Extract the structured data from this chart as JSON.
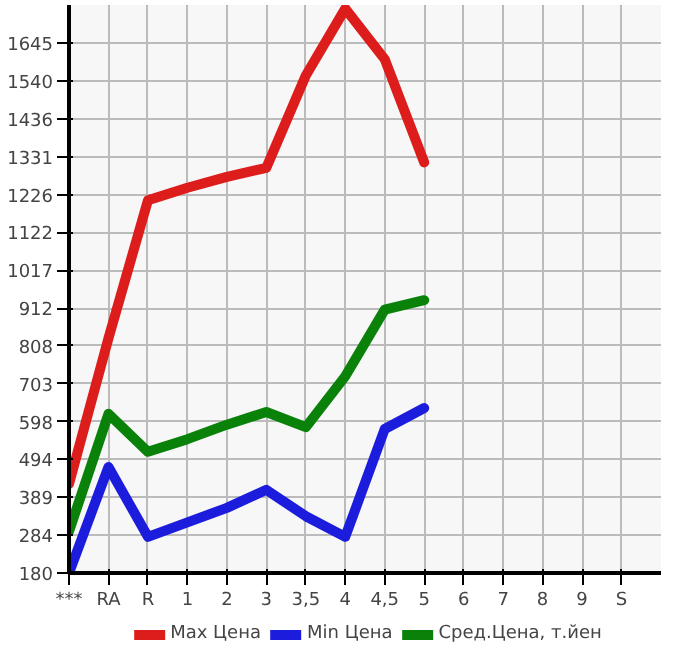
{
  "chart_data": {
    "type": "line",
    "categories": [
      "***",
      "RA",
      "R",
      "1",
      "2",
      "3",
      "3,5",
      "4",
      "4,5",
      "5",
      "6",
      "7",
      "8",
      "9",
      "S"
    ],
    "series": [
      {
        "name": "Max Цена",
        "color": "#dd1c1c",
        "values": [
          426,
          829,
          1210,
          1245,
          1275,
          1300,
          1555,
          1740,
          1600,
          1315,
          null,
          null,
          null,
          null,
          null
        ]
      },
      {
        "name": "Min Цена",
        "color": "#1c1cdd",
        "values": [
          180,
          473,
          280,
          320,
          360,
          410,
          337,
          280,
          578,
          636,
          null,
          null,
          null,
          null,
          null
        ]
      },
      {
        "name": "Сред.Цена, т.йен",
        "color": "#0a820a",
        "values": [
          295,
          620,
          515,
          550,
          590,
          625,
          583,
          724,
          908,
          934,
          null,
          null,
          null,
          null,
          null
        ]
      }
    ],
    "ylim": [
      180,
      1750
    ],
    "yticks": [
      180,
      284,
      389,
      494,
      598,
      703,
      808,
      912,
      1017,
      1122,
      1226,
      1331,
      1436,
      1540,
      1645
    ],
    "grid": true,
    "legend": "bottom",
    "marker": "none",
    "line_style": "solid"
  }
}
